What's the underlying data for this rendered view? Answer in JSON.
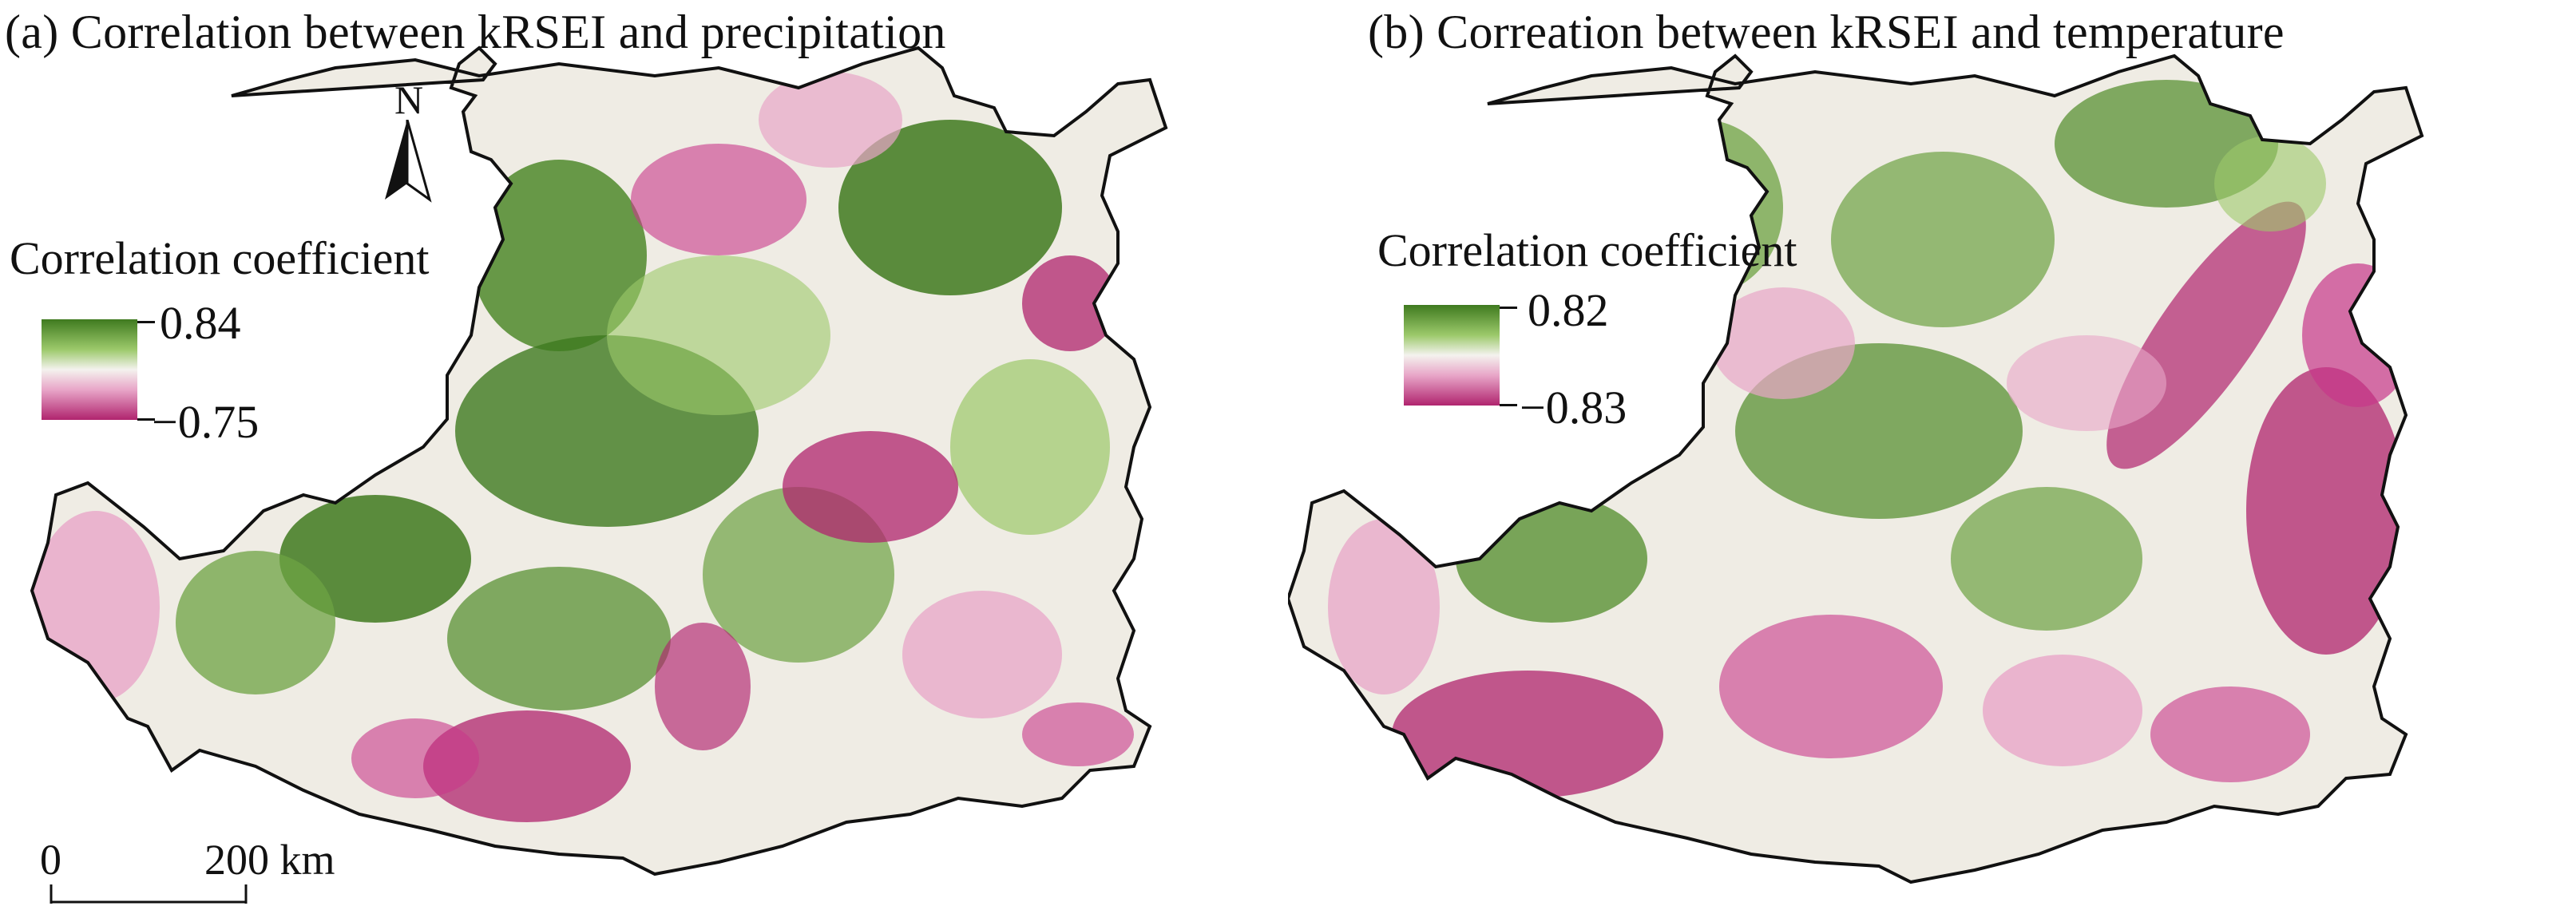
{
  "panels": [
    {
      "title": "(a) Correlation between kRSEI and precipitation",
      "legend": {
        "title": "Correlation coefficient",
        "max": "0.84",
        "min": "−0.75",
        "color_high": "#3f7a1f",
        "color_mid": "#f4f2ee",
        "color_low": "#b0246e"
      }
    },
    {
      "title": "(b) Correation between kRSEI and temperature",
      "legend": {
        "title": "Correlation coefficient",
        "max": "0.82",
        "min": "−0.83",
        "color_high": "#3f7a1f",
        "color_mid": "#f4f2ee",
        "color_low": "#b0246e"
      }
    }
  ],
  "north_arrow": {
    "label": "N",
    "icon": "north-arrow-icon"
  },
  "scale_bar": {
    "start_label": "0",
    "end_label": "200 km"
  },
  "colors": {
    "positive": "#3f7a1f",
    "positive_light": "#9cc96a",
    "neutral": "#f4f2ee",
    "negative_light": "#e8a6c8",
    "negative": "#b0246e",
    "boundary": "#111111"
  }
}
